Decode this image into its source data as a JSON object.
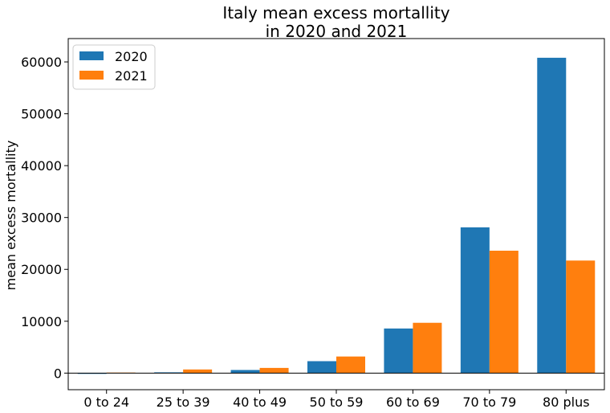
{
  "chart_data": {
    "type": "bar",
    "title_lines": [
      "Italy mean excess mortallity",
      "in 2020 and 2021"
    ],
    "xlabel": "",
    "ylabel": "mean excess mortallity",
    "categories": [
      "0 to 24",
      "25 to 39",
      "40 to 49",
      "50 to 59",
      "60 to 69",
      "70 to 79",
      "80 plus"
    ],
    "series": [
      {
        "name": "2020",
        "color": "#1f77b4",
        "values": [
          -150,
          150,
          600,
          2300,
          8600,
          28100,
          60800
        ]
      },
      {
        "name": "2021",
        "color": "#ff7f0e",
        "values": [
          100,
          700,
          1000,
          3200,
          9700,
          23600,
          21700
        ]
      }
    ],
    "ylim": [
      -3200,
      64500
    ],
    "yticks": [
      0,
      10000,
      20000,
      30000,
      40000,
      50000,
      60000
    ],
    "zero_line": true,
    "grid": false,
    "legend_position": "top-left"
  }
}
